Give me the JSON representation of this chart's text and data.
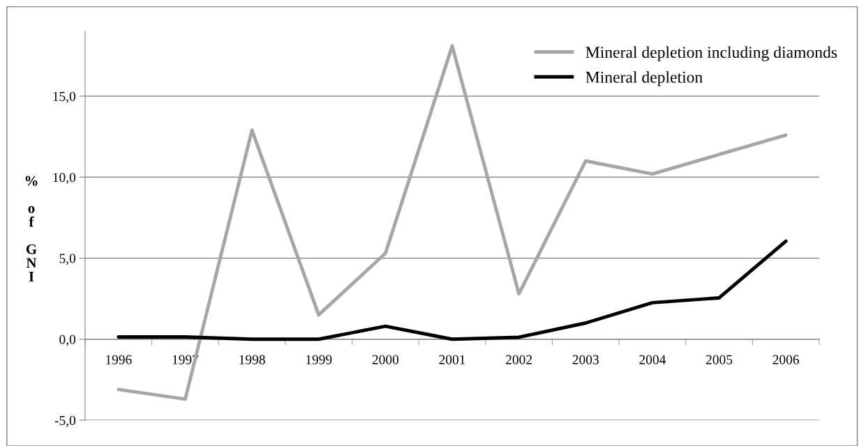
{
  "chart_data": {
    "type": "line",
    "ylabel": "% of GNI",
    "categories": [
      "1996",
      "1997",
      "1998",
      "1999",
      "2000",
      "2001",
      "2002",
      "2003",
      "2004",
      "2005",
      "2006"
    ],
    "series": [
      {
        "name": "Mineral depletion including diamonds",
        "color": "#a6a6a6",
        "values": [
          -3.1,
          -3.7,
          12.9,
          1.5,
          5.3,
          18.1,
          2.8,
          11.0,
          10.2,
          11.4,
          12.6
        ]
      },
      {
        "name": "Mineral depletion",
        "color": "#000000",
        "values": [
          0.14,
          0.14,
          0.0,
          0.0,
          0.8,
          0.0,
          0.12,
          1.0,
          2.25,
          2.55,
          6.05
        ]
      }
    ],
    "ylim": [
      -5,
      19
    ],
    "yticks": [
      {
        "value": -5,
        "label": "-5,0"
      },
      {
        "value": 0,
        "label": "0,0"
      },
      {
        "value": 5,
        "label": "5,0"
      },
      {
        "value": 10,
        "label": "10,0"
      },
      {
        "value": 15,
        "label": "15,0"
      }
    ],
    "grid": "y",
    "legend": "top right",
    "marker": "none",
    "line_style": "solid"
  }
}
